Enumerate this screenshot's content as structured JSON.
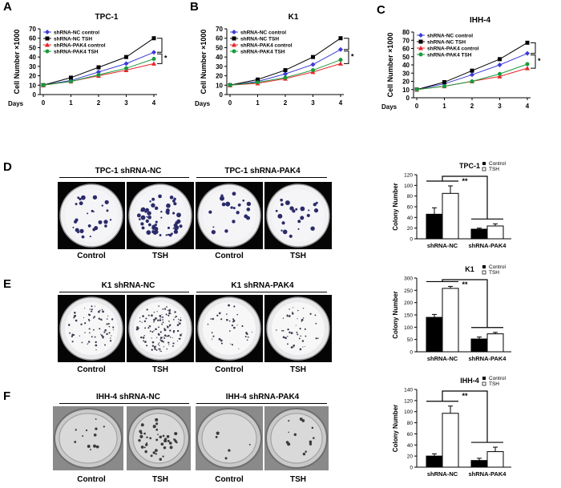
{
  "panels": {
    "a": "A",
    "b": "B",
    "c": "C",
    "d": "D",
    "e": "E",
    "f": "F"
  },
  "colors": {
    "nc_control": "#3b3bd6",
    "nc_tsh": "#000000",
    "pak4_control": "#e8262a",
    "pak4_tsh": "#1a9a3c"
  },
  "line_charts": [
    {
      "type": "line",
      "title": "TPC-1",
      "ylabel": "Cell Number ×1000",
      "xlabel": "Days",
      "x": [
        0,
        1,
        2,
        3,
        4
      ],
      "xticks": [
        "0",
        "1",
        "2",
        "3",
        "4"
      ],
      "ylim": [
        0,
        70
      ],
      "yticks": [
        "0",
        "10",
        "20",
        "30",
        "40",
        "50",
        "60",
        "70"
      ],
      "sig": "*",
      "series": [
        {
          "name": "shRNA-NC control",
          "marker": "diamond",
          "values": [
            10,
            15,
            24,
            33,
            45
          ]
        },
        {
          "name": "shRNA-NC TSH",
          "marker": "square",
          "values": [
            10,
            18,
            29,
            40,
            60
          ]
        },
        {
          "name": "shRNA-PAK4 control",
          "marker": "triangle",
          "values": [
            10,
            14,
            20,
            26,
            33
          ]
        },
        {
          "name": "shRNA-PAK4 TSH",
          "marker": "circle",
          "values": [
            10,
            14,
            21,
            28,
            38
          ]
        }
      ]
    },
    {
      "type": "line",
      "title": "K1",
      "ylabel": "Cell Number ×1000",
      "xlabel": "Days",
      "x": [
        0,
        1,
        2,
        3,
        4
      ],
      "xticks": [
        "0",
        "1",
        "2",
        "3",
        "4"
      ],
      "ylim": [
        0,
        70
      ],
      "yticks": [
        "0",
        "10",
        "20",
        "30",
        "40",
        "50",
        "60",
        "70"
      ],
      "sig": "*",
      "series": [
        {
          "name": "shRNA-NC control",
          "marker": "diamond",
          "values": [
            10,
            14,
            22,
            32,
            48
          ]
        },
        {
          "name": "shRNA-NC TSH",
          "marker": "square",
          "values": [
            10,
            16,
            26,
            40,
            60
          ]
        },
        {
          "name": "shRNA-PAK4 control",
          "marker": "triangle",
          "values": [
            10,
            12,
            17,
            24,
            33
          ]
        },
        {
          "name": "shRNA-PAK4 TSH",
          "marker": "circle",
          "values": [
            10,
            13,
            18,
            26,
            37
          ]
        }
      ]
    },
    {
      "type": "line",
      "title": "IHH-4",
      "ylabel": "Cell Number ×1000",
      "xlabel": "Days",
      "x": [
        0,
        1,
        2,
        3,
        4
      ],
      "xticks": [
        "0",
        "1",
        "2",
        "3",
        "4"
      ],
      "ylim": [
        0,
        80
      ],
      "yticks": [
        "0",
        "10",
        "20",
        "30",
        "40",
        "50",
        "60",
        "70",
        "80"
      ],
      "sig": "*",
      "series": [
        {
          "name": "shRNA-NC control",
          "marker": "diamond",
          "values": [
            10,
            17,
            28,
            40,
            54
          ]
        },
        {
          "name": "shRNA-NC TSH",
          "marker": "square",
          "values": [
            10,
            19,
            33,
            47,
            67
          ]
        },
        {
          "name": "shRNA-PAK4 control",
          "marker": "triangle",
          "values": [
            10,
            14,
            20,
            26,
            36
          ]
        },
        {
          "name": "shRNA-PAK4 TSH",
          "marker": "circle",
          "values": [
            10,
            14,
            20,
            29,
            41
          ]
        }
      ]
    }
  ],
  "bar_charts": [
    {
      "type": "bar",
      "title": "TPC-1",
      "ylabel": "Colony Number",
      "ylim": [
        0,
        120
      ],
      "yticks": [
        "0",
        "20",
        "40",
        "60",
        "80",
        "100",
        "120"
      ],
      "categories": [
        "shRNA-NC",
        "shRNA-PAK4"
      ],
      "sig": "**",
      "series": [
        {
          "name": "Control",
          "values": [
            46,
            18
          ],
          "errors": [
            12,
            2
          ]
        },
        {
          "name": "TSH",
          "values": [
            85,
            24
          ],
          "errors": [
            14,
            4
          ]
        }
      ]
    },
    {
      "type": "bar",
      "title": "K1",
      "ylabel": "Colony Number",
      "ylim": [
        0,
        300
      ],
      "yticks": [
        "0",
        "50",
        "100",
        "150",
        "200",
        "250",
        "300"
      ],
      "categories": [
        "shRNA-NC",
        "shRNA-PAK4"
      ],
      "sig": "**",
      "series": [
        {
          "name": "Control",
          "values": [
            140,
            52
          ],
          "errors": [
            12,
            8
          ]
        },
        {
          "name": "TSH",
          "values": [
            258,
            73
          ],
          "errors": [
            8,
            6
          ]
        }
      ]
    },
    {
      "type": "bar",
      "title": "IHH-4",
      "ylabel": "Colony Number",
      "ylim": [
        0,
        140
      ],
      "yticks": [
        "0",
        "20",
        "40",
        "60",
        "80",
        "100",
        "120",
        "140"
      ],
      "categories": [
        "shRNA-NC",
        "shRNA-PAK4"
      ],
      "sig": "**",
      "series": [
        {
          "name": "Control",
          "values": [
            20,
            12
          ],
          "errors": [
            4,
            4
          ]
        },
        {
          "name": "TSH",
          "values": [
            97,
            28
          ],
          "errors": [
            13,
            8
          ]
        }
      ]
    }
  ],
  "plate_rows": [
    {
      "group_nc": "TPC-1  shRNA-NC",
      "group_pak4": "TPC-1 shRNA-PAK4",
      "labels": [
        "Control",
        "TSH",
        "Control",
        "TSH"
      ]
    },
    {
      "group_nc": "K1 shRNA-NC",
      "group_pak4": "K1 shRNA-PAK4",
      "labels": [
        "Control",
        "TSH",
        "Control",
        "TSH"
      ]
    },
    {
      "group_nc": "IHH-4  shRNA-NC",
      "group_pak4": "IHH-4  shRNA-PAK4",
      "labels": [
        "Control",
        "TSH",
        "Control",
        "TSH"
      ]
    }
  ]
}
